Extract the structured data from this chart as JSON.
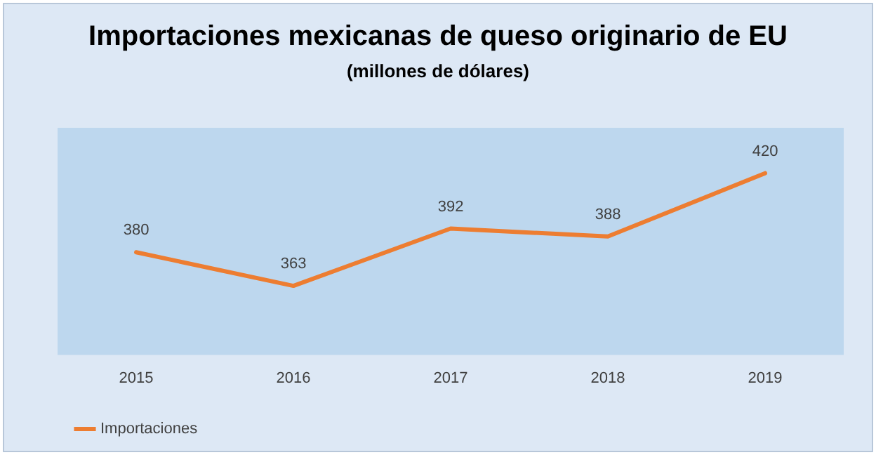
{
  "chart_data": {
    "type": "line",
    "title": "Importaciones mexicanas de queso originario de EU",
    "subtitle": "(millones de dólares)",
    "categories": [
      "2015",
      "2016",
      "2017",
      "2018",
      "2019"
    ],
    "series": [
      {
        "name": "Importaciones",
        "color": "#ed7d31",
        "values": [
          380,
          363,
          392,
          388,
          420
        ]
      }
    ],
    "ylim": [
      328,
      443
    ],
    "tick_labels": "x",
    "grid": false,
    "legend": "bottom left",
    "marker": "none",
    "line_style": "solid",
    "data_labels": true
  }
}
